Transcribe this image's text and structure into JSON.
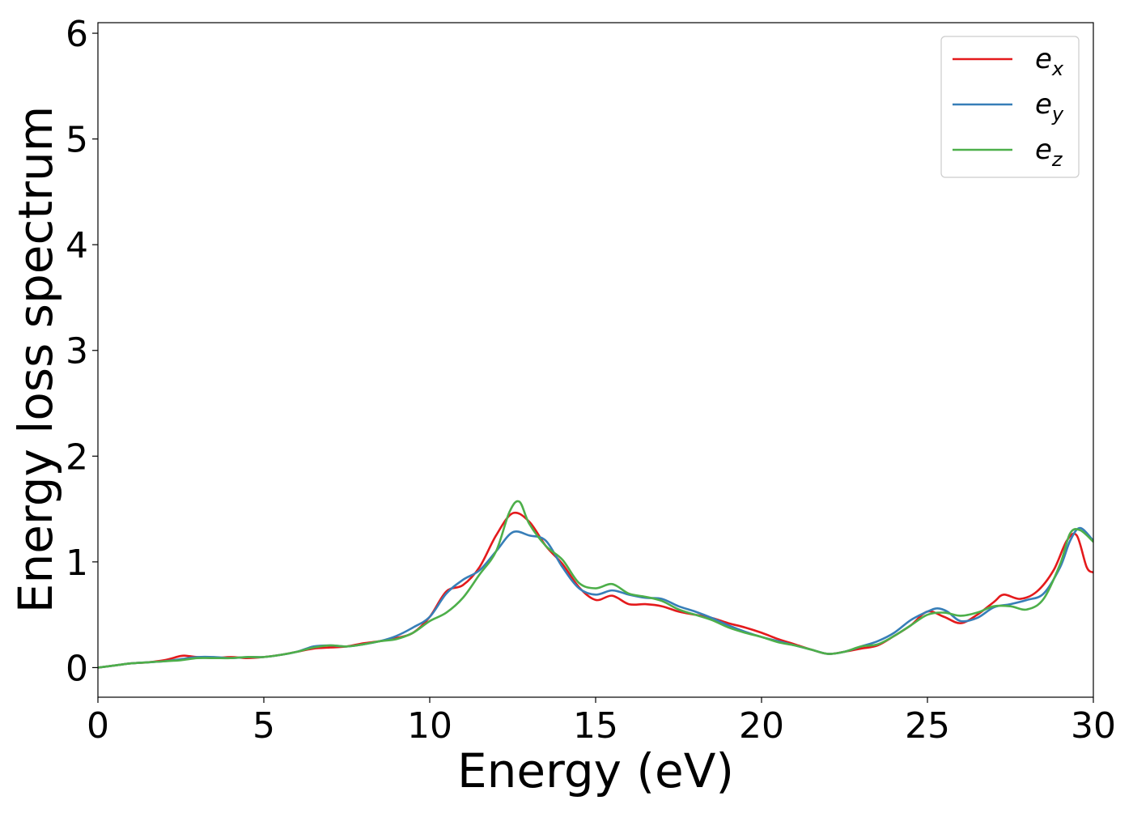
{
  "chart_data": {
    "type": "line",
    "title": "",
    "xlabel": "Energy (eV)",
    "ylabel": "Energy loss spectrum",
    "xlim": [
      0,
      30
    ],
    "ylim": [
      -0.28,
      6.1
    ],
    "xticks": [
      0,
      5,
      10,
      15,
      20,
      25,
      30
    ],
    "xtick_labels": [
      "0",
      "5",
      "10",
      "15",
      "20",
      "25",
      "30"
    ],
    "yticks": [
      0,
      1,
      2,
      3,
      4,
      5,
      6
    ],
    "ytick_labels": [
      "0",
      "1",
      "2",
      "3",
      "4",
      "5",
      "6"
    ],
    "grid": false,
    "legend_position": "top-right",
    "series": [
      {
        "name": "e_x",
        "label_base": "e",
        "label_sub": "x",
        "color": "#e41a1c",
        "x": [
          0,
          0.5,
          1,
          1.5,
          2,
          2.5,
          2.7,
          3,
          3.5,
          4,
          4.5,
          5,
          5.5,
          6,
          6.5,
          7,
          7.5,
          8,
          8.5,
          9,
          9.5,
          10,
          10.5,
          11,
          11.5,
          12,
          12.5,
          13,
          13.5,
          14,
          14.5,
          15,
          15.5,
          16,
          16.5,
          17,
          17.5,
          18,
          18.5,
          19,
          19.5,
          20,
          20.5,
          21,
          21.5,
          22,
          22.5,
          23,
          23.5,
          24,
          24.5,
          25,
          25.5,
          26,
          26.5,
          27,
          27.3,
          27.8,
          28.3,
          28.8,
          29.2,
          29.5,
          29.8,
          30
        ],
        "y": [
          0,
          0.02,
          0.04,
          0.05,
          0.07,
          0.11,
          0.11,
          0.1,
          0.09,
          0.1,
          0.09,
          0.1,
          0.12,
          0.15,
          0.18,
          0.19,
          0.2,
          0.23,
          0.25,
          0.28,
          0.33,
          0.48,
          0.72,
          0.78,
          0.95,
          1.25,
          1.46,
          1.38,
          1.15,
          0.98,
          0.76,
          0.64,
          0.68,
          0.6,
          0.6,
          0.58,
          0.53,
          0.5,
          0.47,
          0.42,
          0.38,
          0.33,
          0.27,
          0.22,
          0.17,
          0.13,
          0.15,
          0.18,
          0.21,
          0.3,
          0.4,
          0.53,
          0.48,
          0.42,
          0.5,
          0.62,
          0.69,
          0.65,
          0.72,
          0.92,
          1.2,
          1.25,
          0.95,
          0.9
        ]
      },
      {
        "name": "e_y",
        "label_base": "e",
        "label_sub": "y",
        "color": "#377eb8",
        "x": [
          0,
          0.5,
          1,
          1.5,
          2,
          2.5,
          3,
          3.5,
          4,
          4.5,
          5,
          5.5,
          6,
          6.5,
          7,
          7.5,
          8,
          8.5,
          9,
          9.5,
          10,
          10.5,
          11,
          11.5,
          12,
          12.5,
          13,
          13.5,
          14,
          14.5,
          15,
          15.5,
          16,
          16.5,
          17,
          17.5,
          18,
          18.5,
          19,
          19.5,
          20,
          20.5,
          21,
          21.5,
          22,
          22.5,
          23,
          23.5,
          24,
          24.5,
          25,
          25.3,
          25.6,
          26,
          26.5,
          27,
          27.5,
          28,
          28.5,
          29,
          29.3,
          29.6,
          30
        ],
        "y": [
          0,
          0.02,
          0.04,
          0.05,
          0.06,
          0.08,
          0.1,
          0.1,
          0.09,
          0.1,
          0.1,
          0.12,
          0.15,
          0.2,
          0.21,
          0.2,
          0.22,
          0.25,
          0.3,
          0.38,
          0.48,
          0.7,
          0.83,
          0.92,
          1.1,
          1.28,
          1.25,
          1.2,
          0.95,
          0.75,
          0.69,
          0.73,
          0.69,
          0.66,
          0.65,
          0.58,
          0.53,
          0.47,
          0.4,
          0.34,
          0.29,
          0.25,
          0.21,
          0.17,
          0.13,
          0.15,
          0.2,
          0.25,
          0.33,
          0.45,
          0.53,
          0.56,
          0.53,
          0.44,
          0.47,
          0.57,
          0.6,
          0.64,
          0.7,
          0.95,
          1.2,
          1.32,
          1.2
        ]
      },
      {
        "name": "e_z",
        "label_base": "e",
        "label_sub": "z",
        "color": "#4daf4a",
        "x": [
          0,
          0.5,
          1,
          1.5,
          2,
          2.5,
          3,
          3.5,
          4,
          4.5,
          5,
          5.5,
          6,
          6.5,
          7,
          7.5,
          8,
          8.5,
          9,
          9.5,
          10,
          10.5,
          11,
          11.5,
          12,
          12.4,
          12.7,
          13,
          13.5,
          14,
          14.5,
          15,
          15.5,
          16,
          16.5,
          17,
          17.5,
          18,
          18.5,
          19,
          19.5,
          20,
          20.5,
          21,
          21.5,
          22,
          22.5,
          23,
          23.5,
          24,
          24.5,
          25,
          25.5,
          26,
          26.5,
          27,
          27.5,
          28,
          28.5,
          29,
          29.3,
          29.6,
          30
        ],
        "y": [
          0,
          0.02,
          0.04,
          0.05,
          0.06,
          0.07,
          0.09,
          0.09,
          0.09,
          0.1,
          0.1,
          0.12,
          0.15,
          0.19,
          0.21,
          0.2,
          0.22,
          0.25,
          0.27,
          0.33,
          0.44,
          0.52,
          0.66,
          0.88,
          1.1,
          1.47,
          1.57,
          1.36,
          1.15,
          1.02,
          0.8,
          0.75,
          0.79,
          0.7,
          0.67,
          0.63,
          0.55,
          0.5,
          0.45,
          0.38,
          0.33,
          0.29,
          0.24,
          0.21,
          0.17,
          0.13,
          0.15,
          0.2,
          0.22,
          0.3,
          0.4,
          0.5,
          0.52,
          0.49,
          0.52,
          0.58,
          0.58,
          0.55,
          0.65,
          0.98,
          1.27,
          1.3,
          1.19
        ]
      }
    ]
  }
}
